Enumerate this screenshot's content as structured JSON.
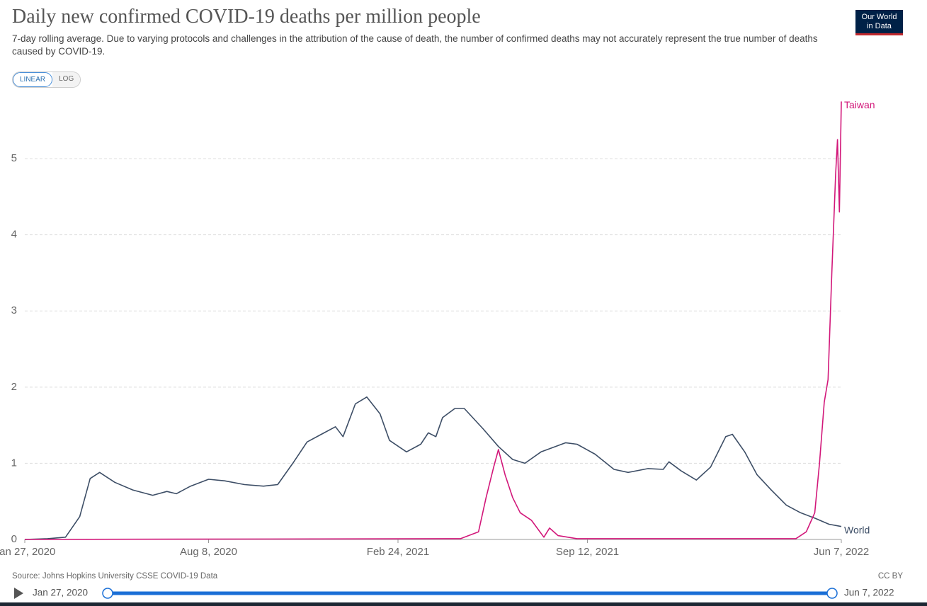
{
  "chart_data": {
    "type": "line",
    "title": "Daily new confirmed COVID-19 deaths per million people",
    "subtitle": "7-day rolling average. Due to varying protocols and challenges in the attribution of the cause of death, the number of confirmed deaths may not accurately represent the true number of deaths caused by COVID-19.",
    "scale_buttons": [
      "LINEAR",
      "LOG"
    ],
    "log_scale": false,
    "grid": true,
    "xlim": [
      "2020-01-27",
      "2022-06-07"
    ],
    "xticks": [
      {
        "value": "2020-01-27",
        "label": "Jan 27, 2020"
      },
      {
        "value": "2020-08-08",
        "label": "Aug 8, 2020"
      },
      {
        "value": "2021-02-24",
        "label": "Feb 24, 2021"
      },
      {
        "value": "2021-09-12",
        "label": "Sep 12, 2021"
      },
      {
        "value": "2022-06-07",
        "label": "Jun 7, 2022"
      }
    ],
    "ylim": [
      0,
      5.8
    ],
    "yticks": [
      0,
      1,
      2,
      3,
      4,
      5
    ],
    "series": [
      {
        "name": "World",
        "color": "#3d4e66",
        "x": [
          "2020-01-27",
          "2020-02-20",
          "2020-03-10",
          "2020-03-25",
          "2020-04-05",
          "2020-04-15",
          "2020-05-01",
          "2020-05-20",
          "2020-06-10",
          "2020-06-25",
          "2020-07-05",
          "2020-07-20",
          "2020-08-08",
          "2020-08-25",
          "2020-09-15",
          "2020-10-05",
          "2020-10-20",
          "2020-11-05",
          "2020-11-20",
          "2020-12-05",
          "2020-12-20",
          "2020-12-28",
          "2021-01-10",
          "2021-01-22",
          "2021-02-05",
          "2021-02-15",
          "2021-03-05",
          "2021-03-20",
          "2021-03-28",
          "2021-04-05",
          "2021-04-12",
          "2021-04-25",
          "2021-05-05",
          "2021-05-25",
          "2021-06-10",
          "2021-06-25",
          "2021-07-08",
          "2021-07-25",
          "2021-08-20",
          "2021-09-01",
          "2021-09-20",
          "2021-10-10",
          "2021-10-25",
          "2021-11-15",
          "2021-12-01",
          "2021-12-07",
          "2021-12-20",
          "2022-01-05",
          "2022-01-20",
          "2022-02-05",
          "2022-02-12",
          "2022-02-25",
          "2022-03-10",
          "2022-03-25",
          "2022-04-10",
          "2022-04-25",
          "2022-05-10",
          "2022-05-25",
          "2022-06-07"
        ],
        "values": [
          0.0,
          0.01,
          0.03,
          0.3,
          0.8,
          0.88,
          0.75,
          0.65,
          0.58,
          0.63,
          0.6,
          0.7,
          0.79,
          0.77,
          0.72,
          0.7,
          0.72,
          1.0,
          1.28,
          1.38,
          1.48,
          1.35,
          1.78,
          1.87,
          1.65,
          1.3,
          1.15,
          1.25,
          1.4,
          1.35,
          1.6,
          1.72,
          1.72,
          1.45,
          1.22,
          1.05,
          1.0,
          1.15,
          1.27,
          1.25,
          1.12,
          0.92,
          0.88,
          0.93,
          0.92,
          1.02,
          0.9,
          0.78,
          0.95,
          1.35,
          1.38,
          1.15,
          0.85,
          0.65,
          0.45,
          0.35,
          0.28,
          0.2,
          0.17
        ]
      },
      {
        "name": "Taiwan",
        "color": "#d2187a",
        "x": [
          "2020-01-27",
          "2021-05-01",
          "2021-05-20",
          "2021-05-28",
          "2021-06-05",
          "2021-06-10",
          "2021-06-17",
          "2021-06-25",
          "2021-07-03",
          "2021-07-15",
          "2021-07-28",
          "2021-08-03",
          "2021-08-12",
          "2021-09-01",
          "2022-04-20",
          "2022-05-01",
          "2022-05-10",
          "2022-05-15",
          "2022-05-20",
          "2022-05-24",
          "2022-05-28",
          "2022-06-01",
          "2022-06-03",
          "2022-06-05",
          "2022-06-07"
        ],
        "values": [
          0,
          0.01,
          0.1,
          0.55,
          0.95,
          1.18,
          0.85,
          0.55,
          0.35,
          0.25,
          0.03,
          0.15,
          0.05,
          0.01,
          0.01,
          0.1,
          0.35,
          1.0,
          1.8,
          2.1,
          3.5,
          4.8,
          5.25,
          4.3,
          5.75
        ]
      }
    ]
  },
  "logo": [
    "Our World",
    "in Data"
  ],
  "source": "Source: Johns Hopkins University CSSE COVID-19 Data",
  "license": "CC BY",
  "timeline": {
    "start": "Jan 27, 2020",
    "end": "Jun 7, 2022"
  }
}
